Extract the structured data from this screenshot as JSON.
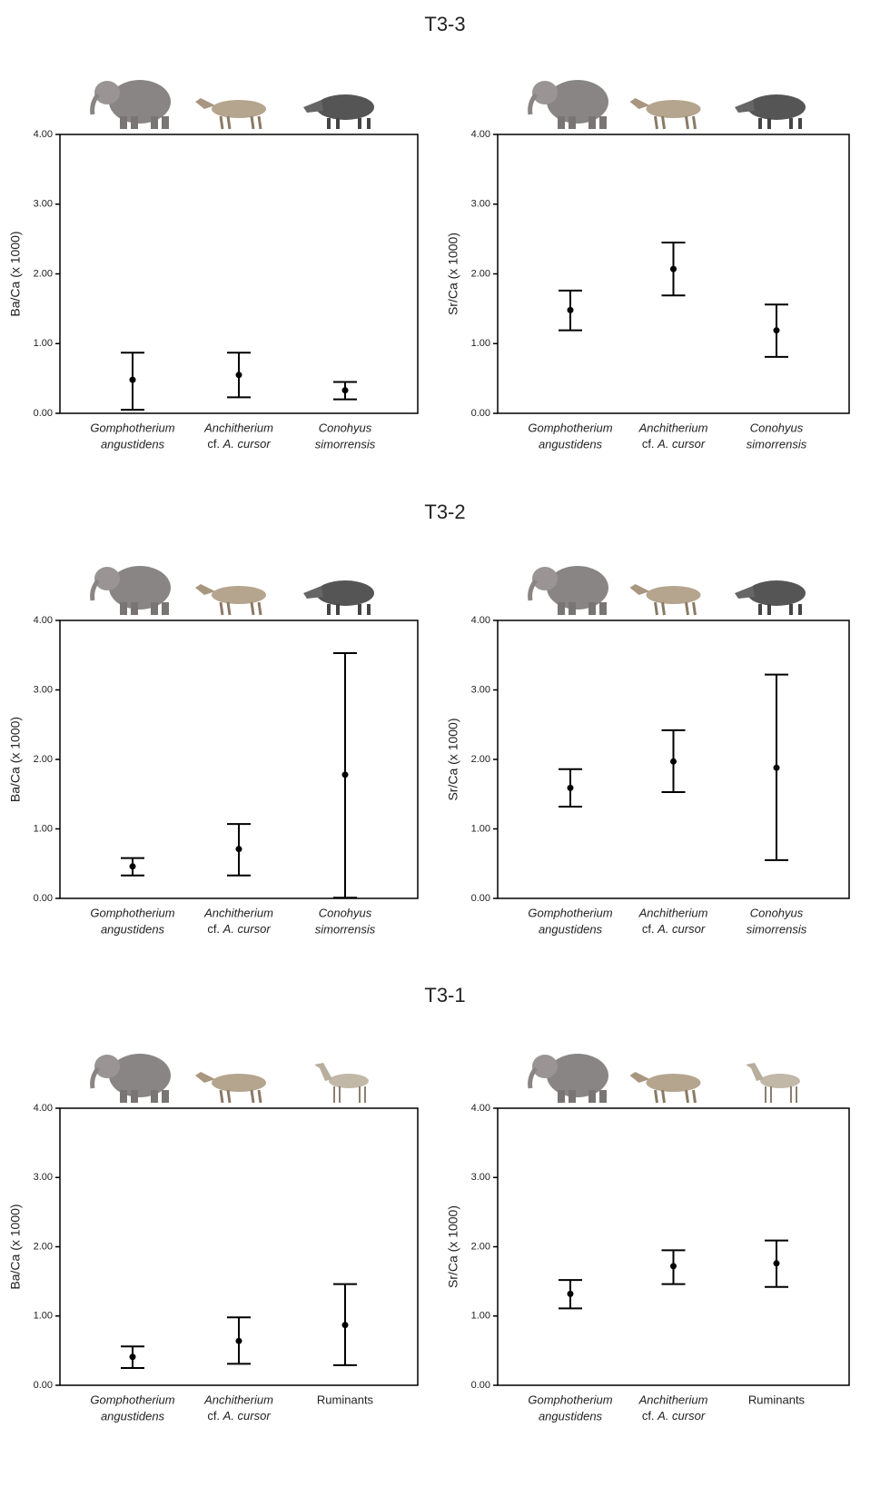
{
  "sections": [
    "T3-3",
    "T3-2",
    "T3-1"
  ],
  "chart_data": [
    {
      "type": "errorbar",
      "ylabel": "Ba/Ca (x 1000)",
      "categories": [
        [
          "Gomphotherium",
          "angustidens"
        ],
        [
          "Anchitherium",
          "cf. A. cursor"
        ],
        [
          "Conohyus",
          "simorrensis"
        ]
      ],
      "italic": [
        true,
        true,
        true
      ],
      "values": [
        0.48,
        0.55,
        0.33
      ],
      "low": [
        0.05,
        0.23,
        0.2
      ],
      "high": [
        0.87,
        0.87,
        0.45
      ],
      "ylim": [
        0,
        4
      ],
      "yticks": [
        {
          "value": 0,
          "label": "0.00"
        },
        {
          "value": 1,
          "label": "1.00"
        },
        {
          "value": 2,
          "label": "2.00"
        },
        {
          "value": 3,
          "label": "3.00"
        },
        {
          "value": 4,
          "label": "4.00"
        }
      ],
      "color": "#000000"
    },
    {
      "type": "errorbar",
      "ylabel": "Sr/Ca (x 1000)",
      "categories": [
        [
          "Gomphotherium",
          "angustidens"
        ],
        [
          "Anchitherium",
          "cf. A. cursor"
        ],
        [
          "Conohyus",
          "simorrensis"
        ]
      ],
      "italic": [
        true,
        true,
        true
      ],
      "values": [
        1.48,
        2.07,
        1.19
      ],
      "low": [
        1.19,
        1.69,
        0.81
      ],
      "high": [
        1.76,
        2.45,
        1.56
      ],
      "ylim": [
        0,
        4
      ],
      "yticks": [
        {
          "value": 0,
          "label": "0.00"
        },
        {
          "value": 1,
          "label": "1.00"
        },
        {
          "value": 2,
          "label": "2.00"
        },
        {
          "value": 3,
          "label": "3.00"
        },
        {
          "value": 4,
          "label": "4.00"
        }
      ],
      "color": "#000000"
    },
    {
      "type": "errorbar",
      "ylabel": "Ba/Ca (x 1000)",
      "categories": [
        [
          "Gomphotherium",
          "angustidens"
        ],
        [
          "Anchitherium",
          "cf. A. cursor"
        ],
        [
          "Conohyus",
          "simorrensis"
        ]
      ],
      "italic": [
        true,
        true,
        true
      ],
      "values": [
        0.46,
        0.71,
        1.78
      ],
      "low": [
        0.33,
        0.33,
        0.01
      ],
      "high": [
        0.58,
        1.07,
        3.53
      ],
      "ylim": [
        0,
        4
      ],
      "yticks": [
        {
          "value": 0,
          "label": "0.00"
        },
        {
          "value": 1,
          "label": "1.00"
        },
        {
          "value": 2,
          "label": "2.00"
        },
        {
          "value": 3,
          "label": "3.00"
        },
        {
          "value": 4,
          "label": "4.00"
        }
      ],
      "color": "#000000"
    },
    {
      "type": "errorbar",
      "ylabel": "Sr/Ca (x 1000)",
      "categories": [
        [
          "Gomphotherium",
          "angustidens"
        ],
        [
          "Anchitherium",
          "cf. A. cursor"
        ],
        [
          "Conohyus",
          "simorrensis"
        ]
      ],
      "italic": [
        true,
        true,
        true
      ],
      "values": [
        1.59,
        1.97,
        1.88
      ],
      "low": [
        1.32,
        1.53,
        0.55
      ],
      "high": [
        1.86,
        2.42,
        3.22
      ],
      "ylim": [
        0,
        4
      ],
      "yticks": [
        {
          "value": 0,
          "label": "0.00"
        },
        {
          "value": 1,
          "label": "1.00"
        },
        {
          "value": 2,
          "label": "2.00"
        },
        {
          "value": 3,
          "label": "3.00"
        },
        {
          "value": 4,
          "label": "4.00"
        }
      ],
      "color": "#000000"
    },
    {
      "type": "errorbar",
      "ylabel": "Ba/Ca (x 1000)",
      "categories": [
        [
          "Gomphotherium",
          "angustidens"
        ],
        [
          "Anchitherium",
          "cf. A. cursor"
        ],
        [
          "Ruminants"
        ]
      ],
      "italic": [
        true,
        true,
        false
      ],
      "values": [
        0.41,
        0.64,
        0.87
      ],
      "low": [
        0.25,
        0.31,
        0.29
      ],
      "high": [
        0.56,
        0.98,
        1.46
      ],
      "ylim": [
        0,
        4
      ],
      "yticks": [
        {
          "value": 0,
          "label": "0.00"
        },
        {
          "value": 1,
          "label": "1.00"
        },
        {
          "value": 2,
          "label": "2.00"
        },
        {
          "value": 3,
          "label": "3.00"
        },
        {
          "value": 4,
          "label": "4.00"
        }
      ],
      "color": "#000000"
    },
    {
      "type": "errorbar",
      "ylabel": "Sr/Ca (x 1000)",
      "categories": [
        [
          "Gomphotherium",
          "angustidens"
        ],
        [
          "Anchitherium",
          "cf. A. cursor"
        ],
        [
          "Ruminants"
        ]
      ],
      "italic": [
        true,
        true,
        false
      ],
      "values": [
        1.32,
        1.72,
        1.76
      ],
      "low": [
        1.11,
        1.46,
        1.42
      ],
      "high": [
        1.52,
        1.95,
        2.09
      ],
      "ylim": [
        0,
        4
      ],
      "yticks": [
        {
          "value": 0,
          "label": "0.00"
        },
        {
          "value": 1,
          "label": "1.00"
        },
        {
          "value": 2,
          "label": "2.00"
        },
        {
          "value": 3,
          "label": "3.00"
        },
        {
          "value": 4,
          "label": "4.00"
        }
      ],
      "color": "#000000"
    }
  ]
}
